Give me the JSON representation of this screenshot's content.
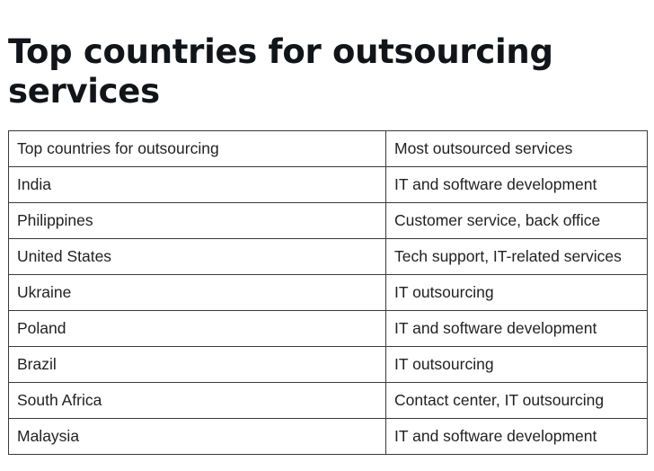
{
  "title": "Top countries for outsourcing services",
  "table": {
    "headers": [
      "Top countries for outsourcing",
      "Most outsourced services"
    ],
    "rows": [
      [
        "India",
        "IT and software development"
      ],
      [
        "Philippines",
        "Customer service, back office"
      ],
      [
        "United States",
        "Tech support, IT-related services"
      ],
      [
        "Ukraine",
        "IT outsourcing"
      ],
      [
        "Poland",
        "IT and software development"
      ],
      [
        "Brazil",
        "IT outsourcing"
      ],
      [
        "South Africa",
        "Contact center, IT outsourcing"
      ],
      [
        "Malaysia",
        "IT and software development"
      ]
    ]
  }
}
